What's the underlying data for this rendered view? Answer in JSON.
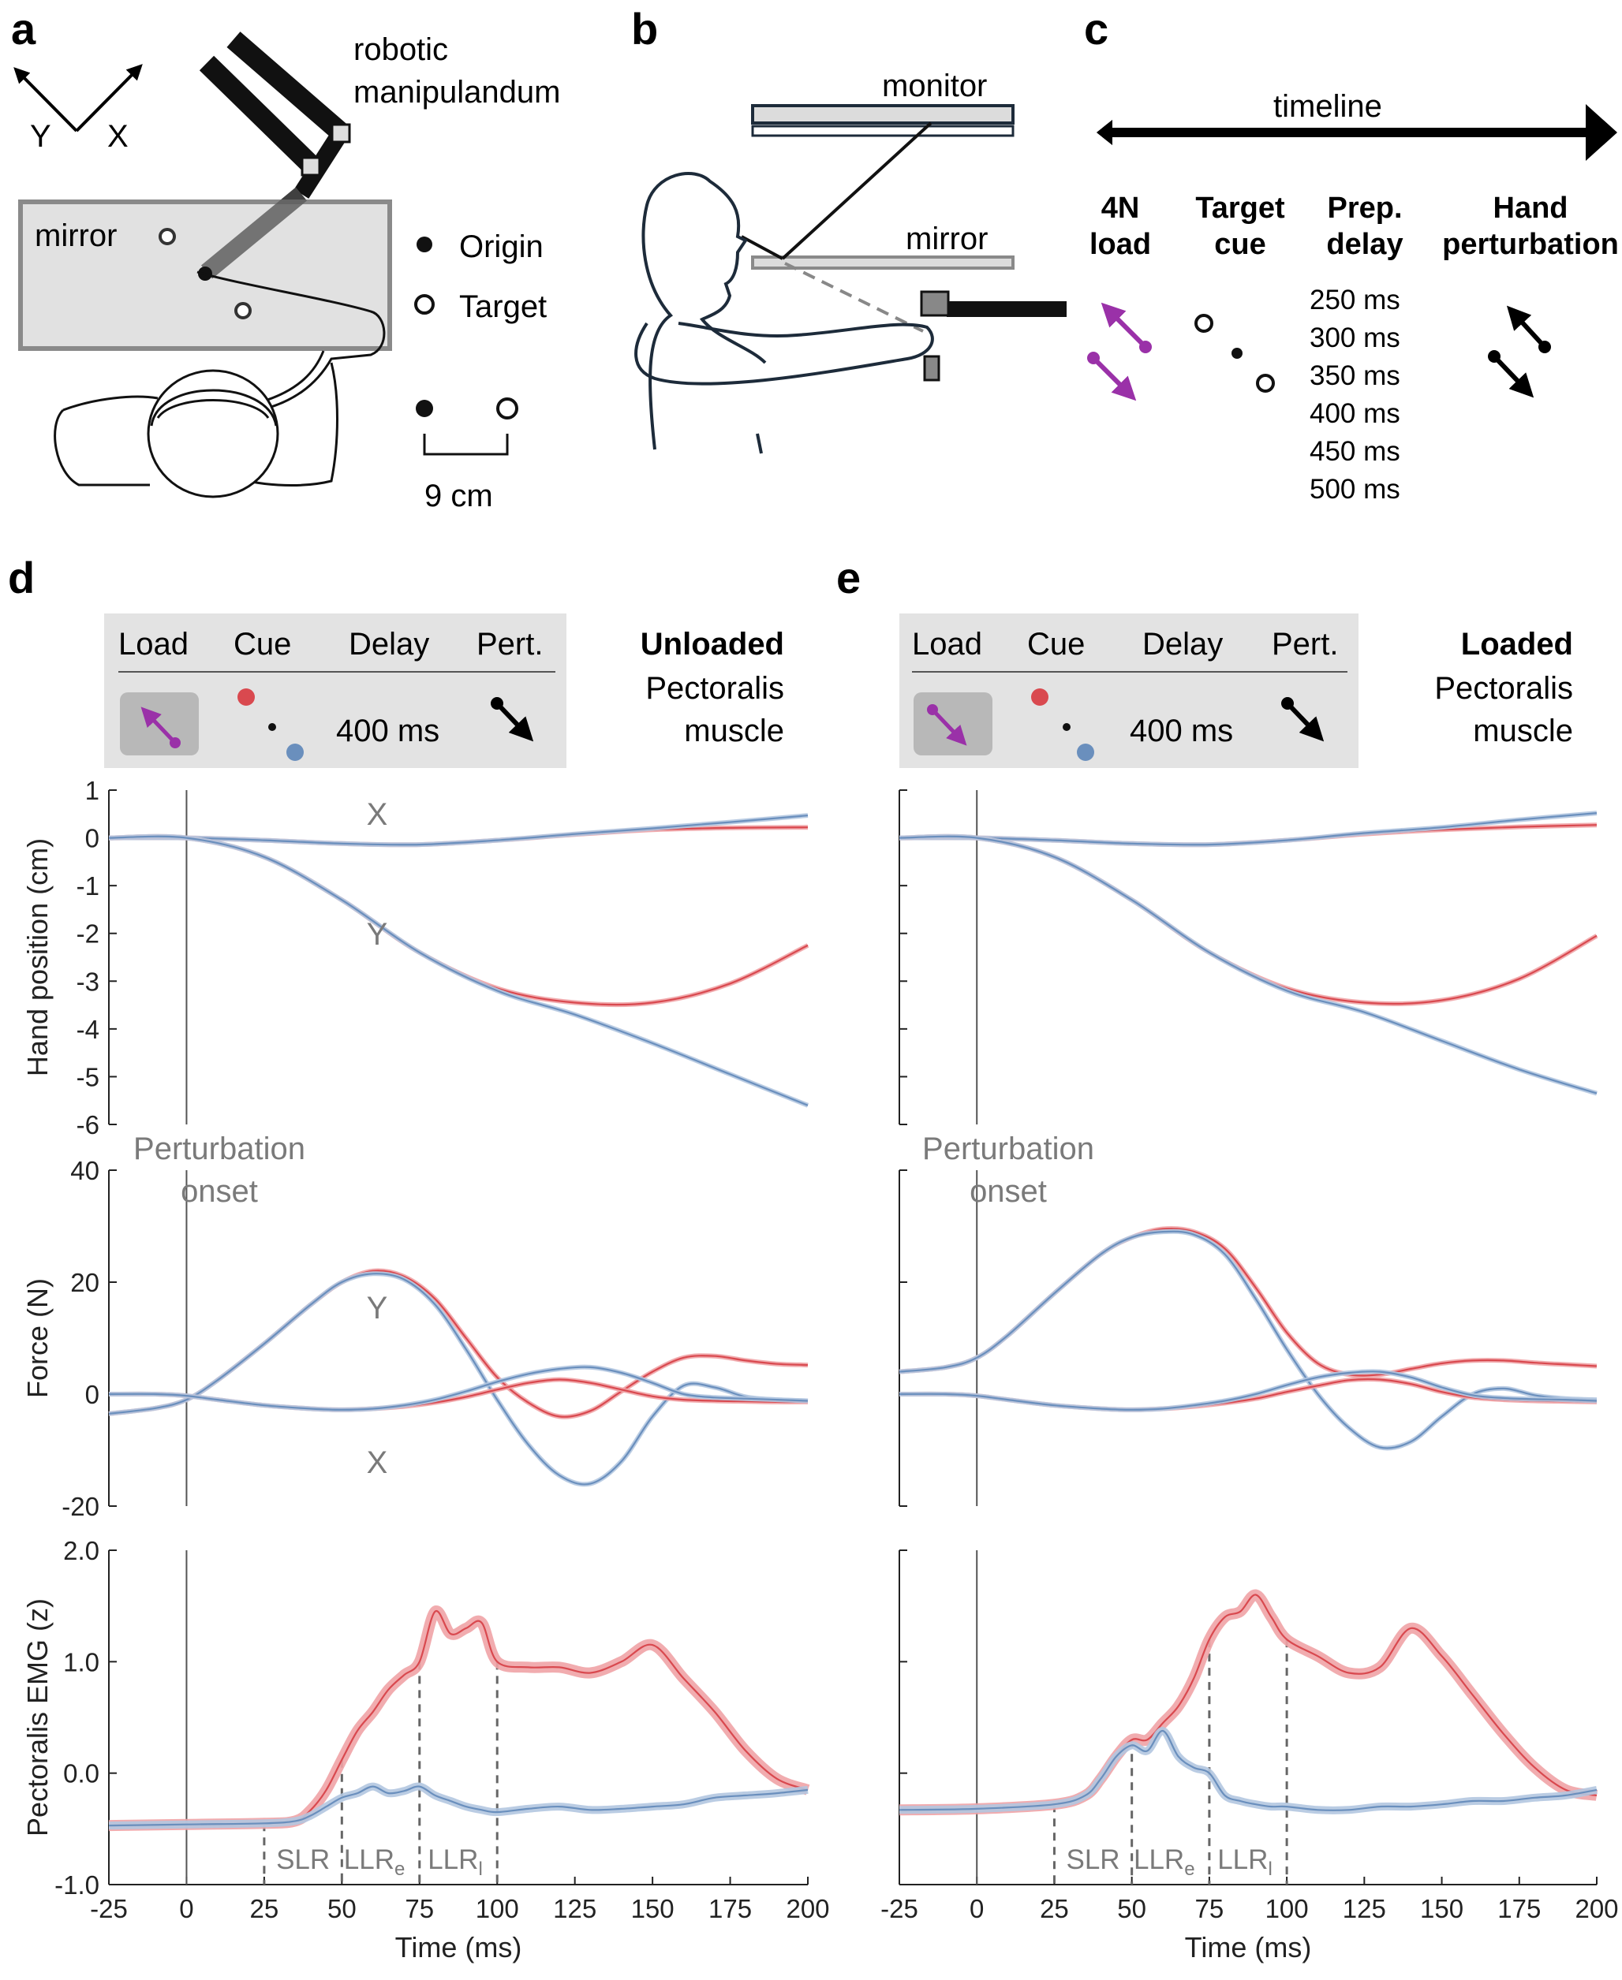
{
  "panels": {
    "a": {
      "label": "a",
      "robot_label": [
        "robotic",
        "manipulandum"
      ],
      "mirror_label": "mirror",
      "axis_x": "X",
      "axis_y": "Y",
      "legend_origin": "Origin",
      "legend_target": "Target",
      "scale_label": "9 cm"
    },
    "b": {
      "label": "b",
      "monitor_label": "monitor",
      "mirror_label": "mirror"
    },
    "c": {
      "label": "c",
      "timeline_label": "timeline",
      "col1": [
        "4N",
        "load"
      ],
      "col2": [
        "Target",
        "cue"
      ],
      "col3": [
        "Prep.",
        "delay"
      ],
      "col4": [
        "Hand",
        "perturbation"
      ],
      "delays": [
        "250 ms",
        "300 ms",
        "350 ms",
        "400 ms",
        "450 ms",
        "500 ms"
      ]
    },
    "d": {
      "label": "d",
      "header": [
        "Load",
        "Cue",
        "Delay",
        "Pert."
      ],
      "delay_value": "400 ms",
      "condition_bold": "Unloaded",
      "condition_rest": [
        "Pectoralis",
        "muscle"
      ]
    },
    "e": {
      "label": "e",
      "header": [
        "Load",
        "Cue",
        "Delay",
        "Pert."
      ],
      "delay_value": "400 ms",
      "condition_bold": "Loaded",
      "condition_rest": [
        "Pectoralis",
        "muscle"
      ]
    }
  },
  "annotations": {
    "perturbation_onset": [
      "Perturbation",
      "onset"
    ],
    "curve_x": "X",
    "curve_y": "Y",
    "slr": "SLR",
    "llr": "LLR",
    "sub_e": "e",
    "sub_l": "l"
  },
  "colors": {
    "red": "#d9494f",
    "blue": "#6a8fbd",
    "red_band": "#f0a3a6",
    "blue_band": "#b3c6e0",
    "purple": "#9a31a8",
    "box": "#e3e3e3"
  },
  "chart_data": [
    {
      "type": "line",
      "panel": "d",
      "ylabel": "Hand position (cm)",
      "xlim": [
        -25,
        200
      ],
      "ylim": [
        -6,
        1
      ],
      "yticks": [
        1,
        0,
        -1,
        -2,
        -3,
        -4,
        -5,
        -6
      ],
      "yticklabels": [
        "1",
        "0",
        "-1",
        "-2",
        "-3",
        "-4",
        "-5",
        "-6"
      ],
      "x": [
        -25,
        0,
        25,
        50,
        75,
        100,
        125,
        150,
        175,
        200
      ],
      "series": [
        {
          "curve": "X",
          "color": "red",
          "values": [
            0,
            0,
            -0.05,
            -0.12,
            -0.14,
            -0.05,
            0.07,
            0.17,
            0.21,
            0.22
          ]
        },
        {
          "curve": "X",
          "color": "blue",
          "values": [
            0,
            0,
            -0.05,
            -0.12,
            -0.14,
            -0.05,
            0.08,
            0.2,
            0.33,
            0.47
          ]
        },
        {
          "curve": "Y",
          "color": "red",
          "values": [
            0,
            0,
            -0.4,
            -1.3,
            -2.4,
            -3.15,
            -3.45,
            -3.45,
            -3.05,
            -2.25
          ]
        },
        {
          "curve": "Y",
          "color": "blue",
          "values": [
            0,
            0,
            -0.4,
            -1.3,
            -2.4,
            -3.2,
            -3.7,
            -4.3,
            -4.95,
            -5.6
          ]
        }
      ]
    },
    {
      "type": "line",
      "panel": "e",
      "ylabel": "",
      "xlim": [
        -25,
        200
      ],
      "ylim": [
        -6,
        1
      ],
      "x": [
        -25,
        0,
        25,
        50,
        75,
        100,
        125,
        150,
        175,
        200
      ],
      "series": [
        {
          "curve": "X",
          "color": "red",
          "values": [
            0,
            0,
            -0.05,
            -0.12,
            -0.14,
            -0.05,
            0.08,
            0.17,
            0.23,
            0.27
          ]
        },
        {
          "curve": "X",
          "color": "blue",
          "values": [
            0,
            0,
            -0.05,
            -0.12,
            -0.14,
            -0.05,
            0.1,
            0.22,
            0.38,
            0.52
          ]
        },
        {
          "curve": "Y",
          "color": "red",
          "values": [
            0,
            0,
            -0.4,
            -1.3,
            -2.4,
            -3.15,
            -3.45,
            -3.4,
            -2.95,
            -2.05
          ]
        },
        {
          "curve": "Y",
          "color": "blue",
          "values": [
            0,
            0,
            -0.4,
            -1.3,
            -2.4,
            -3.2,
            -3.65,
            -4.25,
            -4.85,
            -5.35
          ]
        }
      ]
    },
    {
      "type": "line",
      "panel": "d",
      "ylabel": "Force (N)",
      "xlim": [
        -25,
        200
      ],
      "ylim": [
        -20,
        40
      ],
      "yticks": [
        40,
        20,
        0,
        -20
      ],
      "yticklabels": [
        "40",
        "20",
        "0",
        "-20"
      ],
      "x": [
        -25,
        -10,
        0,
        10,
        25,
        40,
        50,
        60,
        70,
        80,
        90,
        100,
        110,
        120,
        130,
        140,
        150,
        160,
        170,
        180,
        190,
        200
      ],
      "series": [
        {
          "curve": "Y",
          "color": "red",
          "values": [
            -3.5,
            -2.5,
            -1,
            2.5,
            9,
            16,
            20,
            22,
            21,
            17,
            10,
            3,
            -1.5,
            -4,
            -3,
            0.5,
            4,
            6.5,
            6.8,
            6,
            5.4,
            5.2
          ]
        },
        {
          "curve": "Y",
          "color": "blue",
          "values": [
            -3.5,
            -2.5,
            -1,
            2.5,
            9,
            16,
            20,
            21.5,
            20.5,
            16,
            8,
            -1,
            -9,
            -14.5,
            -16,
            -12,
            -4,
            1.5,
            1.2,
            -0.5,
            -1,
            -1.2
          ]
        },
        {
          "curve": "X",
          "color": "red",
          "values": [
            0,
            0,
            -0.3,
            -1,
            -2,
            -2.6,
            -2.8,
            -2.6,
            -2.2,
            -1.5,
            -0.5,
            0.8,
            2,
            2.6,
            2,
            0.8,
            -0.4,
            -1,
            -1.2,
            -1.3,
            -1.4,
            -1.4
          ]
        },
        {
          "curve": "X",
          "color": "blue",
          "values": [
            0,
            0,
            -0.3,
            -1,
            -2,
            -2.6,
            -2.8,
            -2.6,
            -2,
            -1,
            0.5,
            2.2,
            3.6,
            4.5,
            4.8,
            3.8,
            2,
            0,
            -0.6,
            -0.8,
            -1,
            -1.2
          ]
        }
      ]
    },
    {
      "type": "line",
      "panel": "e",
      "ylabel": "",
      "xlim": [
        -25,
        200
      ],
      "ylim": [
        -20,
        40
      ],
      "x": [
        -25,
        -10,
        0,
        10,
        25,
        40,
        50,
        60,
        70,
        80,
        90,
        100,
        110,
        120,
        130,
        140,
        150,
        160,
        170,
        180,
        190,
        200
      ],
      "series": [
        {
          "curve": "Y",
          "color": "red",
          "values": [
            4,
            4.8,
            6.5,
            10.5,
            18,
            25,
            28,
            29.5,
            29,
            26,
            19,
            11,
            5.5,
            3.5,
            3.5,
            4.5,
            5.5,
            6,
            6,
            5.6,
            5.3,
            5
          ]
        },
        {
          "curve": "Y",
          "color": "blue",
          "values": [
            4,
            4.8,
            6.5,
            10.5,
            18,
            25,
            28,
            29,
            28.5,
            25,
            17,
            8,
            0,
            -6,
            -9.5,
            -8.5,
            -4,
            0,
            1,
            -0.2,
            -0.8,
            -1
          ]
        },
        {
          "curve": "X",
          "color": "red",
          "values": [
            0,
            0,
            -0.3,
            -1,
            -2,
            -2.6,
            -2.8,
            -2.6,
            -2.2,
            -1.6,
            -0.8,
            0.4,
            1.5,
            2.5,
            2.6,
            1.8,
            0.4,
            -0.6,
            -1,
            -1.2,
            -1.3,
            -1.4
          ]
        },
        {
          "curve": "X",
          "color": "blue",
          "values": [
            0,
            0,
            -0.3,
            -1,
            -2,
            -2.6,
            -2.8,
            -2.6,
            -2,
            -1.2,
            0,
            1.6,
            3,
            3.8,
            4,
            3,
            1.2,
            -0.2,
            -0.7,
            -0.9,
            -1,
            -1.2
          ]
        }
      ]
    },
    {
      "type": "line",
      "panel": "d",
      "ylabel": "Pectoralis EMG (z)",
      "xlabel": "Time (ms)",
      "xlim": [
        -25,
        200
      ],
      "ylim": [
        -1,
        2
      ],
      "xticks": [
        -25,
        0,
        25,
        50,
        75,
        100,
        125,
        150,
        175,
        200
      ],
      "xticklabels": [
        "-25",
        "0",
        "25",
        "50",
        "75",
        "100",
        "125",
        "150",
        "175",
        "200"
      ],
      "yticks": [
        2,
        1,
        0,
        -1
      ],
      "yticklabels": [
        "2.0",
        "1.0",
        "0.0",
        "-1.0"
      ],
      "windows": [
        25,
        50,
        75,
        100
      ],
      "x": [
        -25,
        0,
        25,
        35,
        40,
        45,
        50,
        55,
        60,
        65,
        70,
        75,
        80,
        85,
        90,
        95,
        100,
        110,
        120,
        130,
        140,
        150,
        160,
        170,
        180,
        190,
        200
      ],
      "series": [
        {
          "color": "red",
          "values": [
            -0.47,
            -0.46,
            -0.45,
            -0.43,
            -0.33,
            -0.15,
            0.12,
            0.38,
            0.55,
            0.75,
            0.88,
            1.0,
            1.45,
            1.25,
            1.3,
            1.35,
            1.0,
            0.95,
            0.95,
            0.9,
            1.0,
            1.15,
            0.85,
            0.55,
            0.2,
            -0.05,
            -0.15
          ]
        },
        {
          "color": "blue",
          "values": [
            -0.47,
            -0.46,
            -0.45,
            -0.43,
            -0.38,
            -0.3,
            -0.22,
            -0.18,
            -0.12,
            -0.18,
            -0.16,
            -0.12,
            -0.2,
            -0.25,
            -0.3,
            -0.33,
            -0.35,
            -0.32,
            -0.3,
            -0.33,
            -0.32,
            -0.3,
            -0.28,
            -0.22,
            -0.2,
            -0.18,
            -0.15
          ]
        }
      ]
    },
    {
      "type": "line",
      "panel": "e",
      "ylabel": "",
      "xlabel": "Time (ms)",
      "xlim": [
        -25,
        200
      ],
      "ylim": [
        -1,
        2
      ],
      "xticks": [
        -25,
        0,
        25,
        50,
        75,
        100,
        125,
        150,
        175,
        200
      ],
      "xticklabels": [
        "-25",
        "0",
        "25",
        "50",
        "75",
        "100",
        "125",
        "150",
        "175",
        "200"
      ],
      "windows": [
        25,
        50,
        75,
        100
      ],
      "x": [
        -25,
        0,
        25,
        35,
        40,
        45,
        50,
        55,
        60,
        65,
        70,
        75,
        80,
        85,
        90,
        95,
        100,
        110,
        120,
        130,
        140,
        150,
        160,
        170,
        180,
        190,
        200
      ],
      "series": [
        {
          "color": "red",
          "values": [
            -0.33,
            -0.32,
            -0.28,
            -0.2,
            -0.05,
            0.15,
            0.3,
            0.3,
            0.45,
            0.6,
            0.85,
            1.2,
            1.4,
            1.45,
            1.6,
            1.4,
            1.2,
            1.05,
            0.9,
            0.95,
            1.3,
            1.05,
            0.7,
            0.35,
            0.05,
            -0.15,
            -0.2
          ]
        },
        {
          "color": "blue",
          "values": [
            -0.33,
            -0.32,
            -0.28,
            -0.2,
            -0.05,
            0.15,
            0.25,
            0.2,
            0.38,
            0.15,
            0.05,
            0.0,
            -0.2,
            -0.25,
            -0.28,
            -0.3,
            -0.3,
            -0.33,
            -0.33,
            -0.3,
            -0.3,
            -0.28,
            -0.25,
            -0.25,
            -0.22,
            -0.2,
            -0.15
          ]
        }
      ]
    }
  ]
}
